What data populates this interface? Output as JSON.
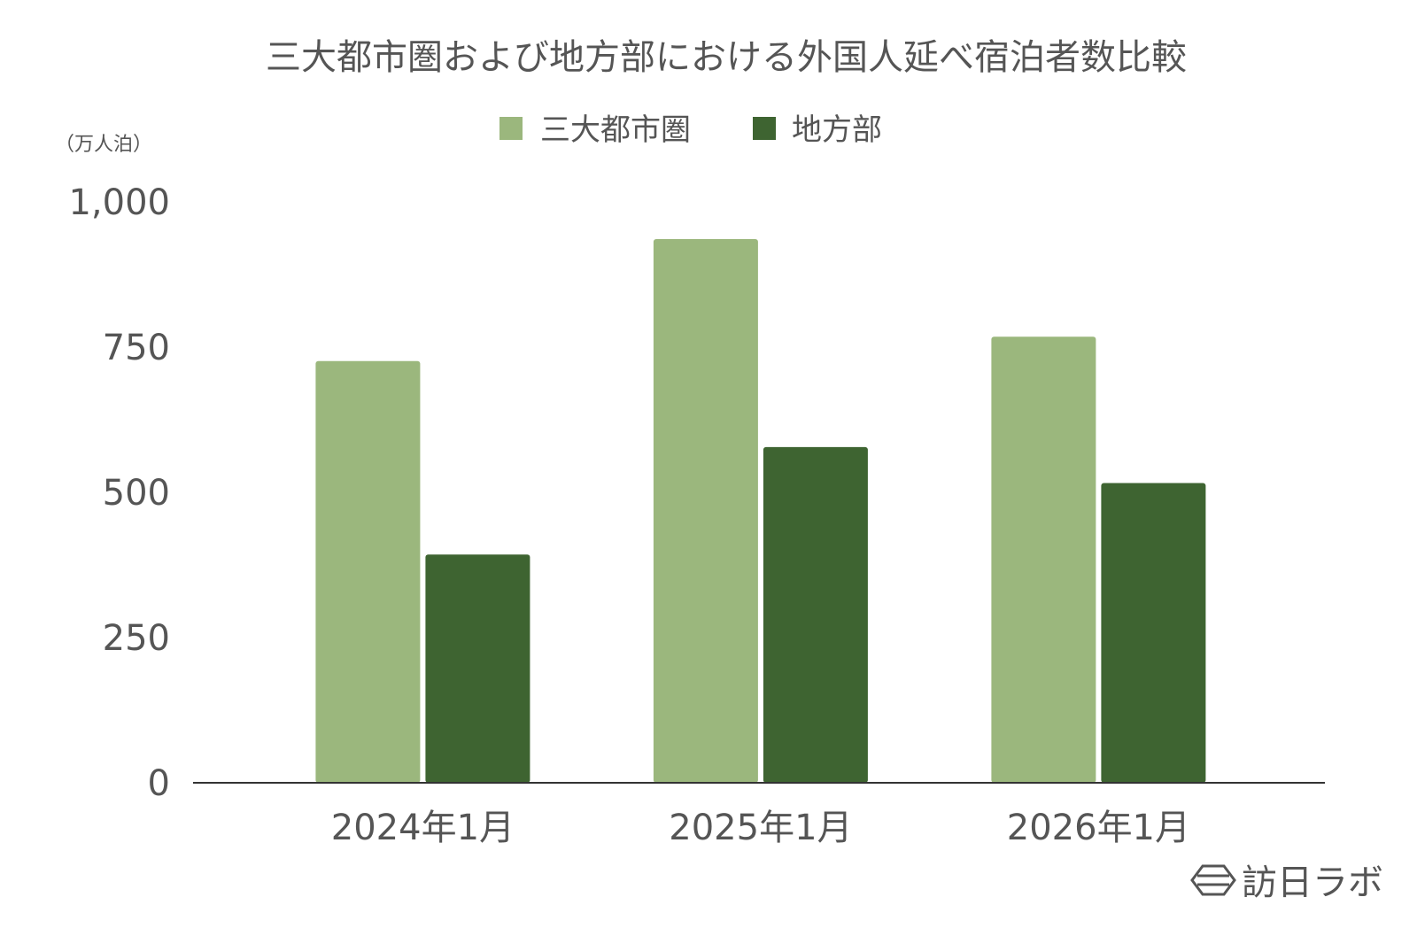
{
  "chart_data": {
    "type": "bar",
    "title": "三大都市圏および地方部における外国人延べ宿泊者数比較",
    "unit_label": "（万人泊）",
    "categories": [
      "2024年1月",
      "2025年1月",
      "2026年1月"
    ],
    "series": [
      {
        "name": "三大都市圏",
        "color": "#9bb77d",
        "values": [
          726,
          936,
          768
        ]
      },
      {
        "name": "地方部",
        "color": "#3e6431",
        "values": [
          393,
          578,
          516
        ]
      }
    ],
    "ylim": [
      0,
      1000
    ],
    "yticks": [
      0,
      250,
      500,
      750,
      1000
    ],
    "ytick_labels": [
      "0",
      "250",
      "500",
      "750",
      "1,000"
    ],
    "grid": false,
    "legend_position": "top-center"
  },
  "branding": {
    "logo_text": "訪日ラボ",
    "logo_icon": "hexagon-icon"
  }
}
